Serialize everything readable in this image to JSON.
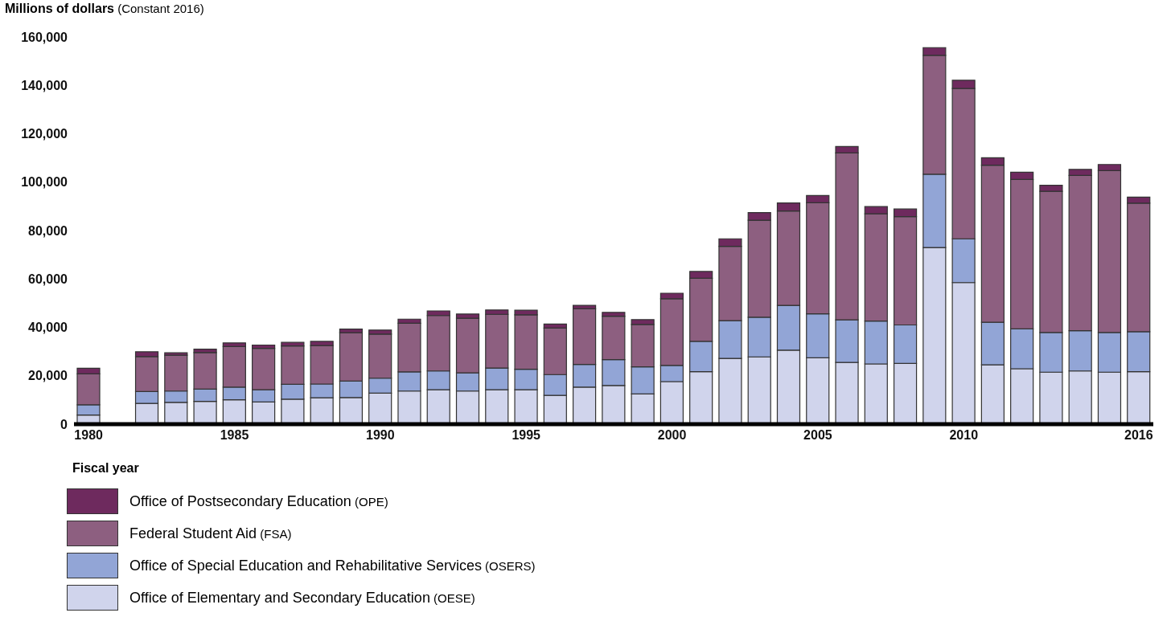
{
  "chart_data": {
    "type": "bar",
    "stacked": true,
    "ylabel": "Millions of dollars (Constant 2016)",
    "xlabel": "Fiscal year",
    "x": [
      1980,
      1982,
      1983,
      1984,
      1985,
      1986,
      1987,
      1988,
      1989,
      1990,
      1991,
      1992,
      1993,
      1994,
      1995,
      1996,
      1997,
      1998,
      1999,
      2000,
      2001,
      2002,
      2003,
      2004,
      2005,
      2006,
      2007,
      2008,
      2009,
      2010,
      2011,
      2012,
      2013,
      2014,
      2015,
      2016
    ],
    "series": [
      {
        "name": "Office of Elementary and Secondary Education (OESE)",
        "color": "#d0d4ec",
        "values": [
          3800,
          8600,
          9000,
          9400,
          10100,
          9200,
          10300,
          10900,
          11000,
          12800,
          13700,
          14200,
          13700,
          14200,
          14200,
          11900,
          15300,
          16000,
          12500,
          17600,
          21700,
          27200,
          27800,
          30600,
          27400,
          25500,
          24900,
          25100,
          73000,
          58500,
          24500,
          22900,
          21500,
          22000,
          21500,
          21700
        ]
      },
      {
        "name": "Office of Special Education and Rehabilitative Services (OSERS)",
        "color": "#92a5d6",
        "values": [
          4200,
          4900,
          4700,
          5100,
          5200,
          5000,
          6200,
          5700,
          6800,
          6200,
          7900,
          7800,
          7500,
          9000,
          8500,
          8600,
          9400,
          10700,
          11200,
          6700,
          12500,
          15600,
          16400,
          18500,
          18200,
          17600,
          17700,
          15900,
          30300,
          18100,
          17600,
          16500,
          16400,
          16600,
          16400,
          16500
        ]
      },
      {
        "name": "Federal Student Aid (FSA)",
        "color": "#8d5f80",
        "values": [
          12800,
          14400,
          14800,
          15100,
          16800,
          17100,
          15800,
          15900,
          20000,
          18200,
          20100,
          22900,
          22600,
          22200,
          22500,
          19200,
          23000,
          17900,
          17500,
          27500,
          26100,
          30700,
          40100,
          39000,
          45900,
          69000,
          44300,
          44800,
          49100,
          62100,
          64900,
          61700,
          58300,
          64200,
          66900,
          53100
        ]
      },
      {
        "name": "Office of Postsecondary Education (OPE)",
        "color": "#6e2a5e",
        "values": [
          2300,
          2000,
          1000,
          1400,
          1500,
          1400,
          1500,
          1700,
          1500,
          1700,
          1700,
          1900,
          1700,
          1800,
          1900,
          1700,
          1400,
          1600,
          2000,
          2300,
          2800,
          3100,
          3100,
          3300,
          3000,
          2600,
          3000,
          3100,
          3200,
          3400,
          3100,
          3000,
          2500,
          2500,
          2500,
          2500
        ]
      }
    ],
    "xlim": [
      1979.5,
      2016.5
    ],
    "xticks": [
      1980,
      1985,
      1990,
      1995,
      2000,
      2005,
      2010,
      2016
    ],
    "ylim": [
      0,
      160000
    ],
    "yticks": [
      0,
      {
        "value": 20000,
        "label": "20,000"
      },
      {
        "value": 40000,
        "label": "40,000"
      },
      {
        "value": 60000,
        "label": "60,000"
      },
      {
        "value": 80000,
        "label": "80,000"
      },
      {
        "value": 100000,
        "label": "100,000"
      },
      {
        "value": 120000,
        "label": "120,000"
      },
      {
        "value": 140000,
        "label": "140,000"
      },
      {
        "value": 160000,
        "label": "160,000"
      }
    ],
    "legend": "bottom"
  }
}
